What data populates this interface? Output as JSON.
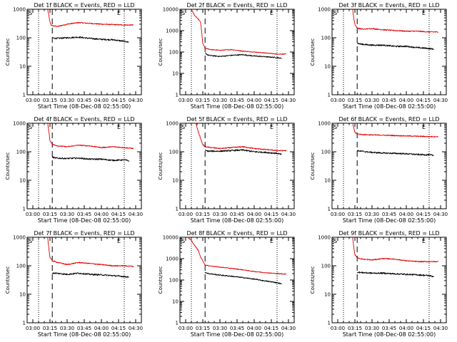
{
  "figure": {
    "background": "#ffffff",
    "event_color": "#000000",
    "lld_color": "#e00000",
    "marker_color": "#000000"
  },
  "chart_data": [
    {
      "type": "line",
      "title": "Det 1f BLACK = Events, RED = LLD",
      "xlabel": "Start Time (08-Dec-08 02:55:00)",
      "ylabel": "Counts/sec",
      "corner_labels": [
        "S",
        "E"
      ],
      "yscale": "log",
      "ylim": [
        1,
        1000
      ],
      "ytick_labels": [
        "1",
        "10",
        "100",
        "1000"
      ],
      "xlim": [
        "02:55",
        "04:35"
      ],
      "xtick_labels": [
        "03:00",
        "03:15",
        "03:30",
        "03:45",
        "04:00",
        "04:15",
        "04:30"
      ],
      "dotted_markers": [
        "03:05",
        "04:20"
      ],
      "dashed_marker": "03:17",
      "grid": false,
      "series": [
        {
          "kind": "lld",
          "x": [
            "03:13",
            "03:14",
            "03:15",
            "03:16",
            "03:18",
            "03:22",
            "03:30",
            "03:40",
            "03:50",
            "04:00",
            "04:10",
            "04:20",
            "04:28"
          ],
          "y": [
            1000,
            600,
            350,
            280,
            260,
            250,
            300,
            340,
            320,
            300,
            290,
            280,
            280
          ]
        },
        {
          "kind": "events",
          "x": [
            "03:17",
            "03:20",
            "03:30",
            "03:40",
            "03:50",
            "04:00",
            "04:10",
            "04:20",
            "04:24"
          ],
          "y": [
            100,
            95,
            100,
            105,
            95,
            88,
            85,
            75,
            70
          ]
        }
      ]
    },
    {
      "type": "line",
      "title": "Det 2f BLACK = Events, RED = LLD",
      "xlabel": "Start Time (08-Dec-08 02:55:00)",
      "ylabel": "Counts/sec",
      "corner_labels": [
        "S",
        "E"
      ],
      "yscale": "log",
      "ylim": [
        1,
        10000
      ],
      "ytick_labels": [
        "1",
        "10",
        "100",
        "1000",
        "10000"
      ],
      "xlim": [
        "02:55",
        "04:35"
      ],
      "xtick_labels": [
        "03:00",
        "03:15",
        "03:30",
        "03:45",
        "04:00",
        "04:15",
        "04:30"
      ],
      "dotted_markers": [
        "03:05",
        "04:20"
      ],
      "dashed_marker": "03:17",
      "grid": false,
      "series": [
        {
          "kind": "lld",
          "x": [
            "03:05",
            "03:08",
            "03:11",
            "03:13",
            "03:14",
            "03:15",
            "03:17",
            "03:22",
            "03:30",
            "03:40",
            "03:50",
            "04:00",
            "04:10",
            "04:20",
            "04:28"
          ],
          "y": [
            10000,
            5000,
            3500,
            2500,
            900,
            250,
            150,
            130,
            120,
            130,
            110,
            100,
            90,
            80,
            80
          ]
        },
        {
          "kind": "events",
          "x": [
            "03:17",
            "03:20",
            "03:30",
            "03:40",
            "03:50",
            "04:00",
            "04:10",
            "04:20",
            "04:24"
          ],
          "y": [
            90,
            70,
            62,
            70,
            75,
            65,
            60,
            55,
            50
          ]
        }
      ]
    },
    {
      "type": "line",
      "title": "Det 3f BLACK = Events, RED = LLD",
      "xlabel": "Start Time (08-Dec-08 02:55:00)",
      "ylabel": "Counts/sec",
      "corner_labels": [
        "S",
        "E"
      ],
      "yscale": "log",
      "ylim": [
        1,
        1000
      ],
      "ytick_labels": [
        "1",
        "10",
        "100",
        "1000"
      ],
      "xlim": [
        "02:55",
        "04:35"
      ],
      "xtick_labels": [
        "03:00",
        "03:15",
        "03:30",
        "03:45",
        "04:00",
        "04:15",
        "04:30"
      ],
      "dotted_markers": [
        "03:05",
        "04:20"
      ],
      "dashed_marker": "03:17",
      "grid": false,
      "series": [
        {
          "kind": "lld",
          "x": [
            "03:13",
            "03:14",
            "03:15",
            "03:17",
            "03:22",
            "03:30",
            "03:40",
            "03:50",
            "04:00",
            "04:10",
            "04:20",
            "04:28"
          ],
          "y": [
            1000,
            500,
            300,
            220,
            200,
            210,
            190,
            180,
            170,
            170,
            160,
            160
          ]
        },
        {
          "kind": "events",
          "x": [
            "03:17",
            "03:20",
            "03:30",
            "03:40",
            "03:50",
            "04:00",
            "04:10",
            "04:20",
            "04:24"
          ],
          "y": [
            65,
            60,
            55,
            55,
            50,
            50,
            45,
            42,
            40
          ]
        }
      ]
    },
    {
      "type": "line",
      "title": "Det 4f BLACK = Events, RED = LLD",
      "xlabel": "Start Time (08-Dec-08 02:55:00)",
      "ylabel": "Counts/sec",
      "corner_labels": [
        "S",
        "E"
      ],
      "yscale": "log",
      "ylim": [
        1,
        1000
      ],
      "ytick_labels": [
        "1",
        "10",
        "100",
        "1000"
      ],
      "xlim": [
        "02:55",
        "04:35"
      ],
      "xtick_labels": [
        "03:00",
        "03:15",
        "03:30",
        "03:45",
        "04:00",
        "04:15",
        "04:30"
      ],
      "dotted_markers": [
        "03:05",
        "04:20"
      ],
      "dashed_marker": "03:17",
      "grid": false,
      "series": [
        {
          "kind": "lld",
          "x": [
            "03:13",
            "03:14",
            "03:15",
            "03:17",
            "03:22",
            "03:30",
            "03:40",
            "03:50",
            "04:00",
            "04:10",
            "04:20",
            "04:28"
          ],
          "y": [
            1000,
            500,
            250,
            180,
            160,
            150,
            170,
            160,
            140,
            150,
            140,
            130
          ]
        },
        {
          "kind": "events",
          "x": [
            "03:17",
            "03:20",
            "03:30",
            "03:40",
            "03:50",
            "04:00",
            "04:10",
            "04:20",
            "04:24"
          ],
          "y": [
            65,
            60,
            58,
            60,
            55,
            55,
            50,
            52,
            48
          ]
        }
      ]
    },
    {
      "type": "line",
      "title": "Det 5f BLACK = Events, RED = LLD",
      "xlabel": "Start Time (08-Dec-08 02:55:00)",
      "ylabel": "Counts/sec",
      "corner_labels": [
        "S",
        "E"
      ],
      "yscale": "log",
      "ylim": [
        1,
        1000
      ],
      "ytick_labels": [
        "1",
        "10",
        "100",
        "1000"
      ],
      "xlim": [
        "02:55",
        "04:35"
      ],
      "xtick_labels": [
        "03:00",
        "03:15",
        "03:30",
        "03:45",
        "04:00",
        "04:15",
        "04:30"
      ],
      "dotted_markers": [
        "03:05",
        "04:20"
      ],
      "dashed_marker": "03:17",
      "grid": false,
      "series": [
        {
          "kind": "lld",
          "x": [
            "03:09",
            "03:11",
            "03:13",
            "03:15",
            "03:17",
            "03:22",
            "03:30",
            "03:40",
            "03:50",
            "04:00",
            "04:10",
            "04:20",
            "04:28"
          ],
          "y": [
            1000,
            500,
            300,
            180,
            150,
            140,
            130,
            140,
            150,
            130,
            120,
            110,
            110
          ]
        },
        {
          "kind": "events",
          "x": [
            "03:17",
            "03:20",
            "03:30",
            "03:40",
            "03:50",
            "04:00",
            "04:10",
            "04:20",
            "04:24"
          ],
          "y": [
            110,
            105,
            105,
            110,
            115,
            100,
            95,
            88,
            80
          ]
        }
      ]
    },
    {
      "type": "line",
      "title": "Det 6f BLACK = Events, RED = LLD",
      "xlabel": "Start Time (08-Dec-08 02:55:00)",
      "ylabel": "Counts/sec",
      "corner_labels": [
        "S",
        "E"
      ],
      "yscale": "log",
      "ylim": [
        1,
        1000
      ],
      "ytick_labels": [
        "1",
        "10",
        "100",
        "1000"
      ],
      "xlim": [
        "02:55",
        "04:35"
      ],
      "xtick_labels": [
        "03:00",
        "03:15",
        "03:30",
        "03:45",
        "04:00",
        "04:15",
        "04:30"
      ],
      "dotted_markers": [
        "03:05",
        "04:20"
      ],
      "dashed_marker": "03:17",
      "grid": false,
      "series": [
        {
          "kind": "lld",
          "x": [
            "03:13",
            "03:14",
            "03:15",
            "03:17",
            "03:22",
            "03:30",
            "03:40",
            "03:50",
            "04:00",
            "04:10",
            "04:20",
            "04:28"
          ],
          "y": [
            1000,
            700,
            480,
            420,
            400,
            390,
            380,
            370,
            360,
            350,
            340,
            340
          ]
        },
        {
          "kind": "events",
          "x": [
            "03:17",
            "03:20",
            "03:30",
            "03:40",
            "03:50",
            "04:00",
            "04:10",
            "04:20",
            "04:24"
          ],
          "y": [
            110,
            105,
            95,
            90,
            88,
            85,
            80,
            78,
            75
          ]
        }
      ]
    },
    {
      "type": "line",
      "title": "Det 7f BLACK = Events, RED = LLD",
      "xlabel": "Start Time (08-Dec-08 02:55:00)",
      "ylabel": "Counts/sec",
      "corner_labels": [
        "S",
        "E"
      ],
      "yscale": "log",
      "ylim": [
        1,
        1000
      ],
      "ytick_labels": [
        "1",
        "10",
        "100",
        "1000"
      ],
      "xlim": [
        "02:55",
        "04:35"
      ],
      "xtick_labels": [
        "03:00",
        "03:15",
        "03:30",
        "03:45",
        "04:00",
        "04:15",
        "04:30"
      ],
      "dotted_markers": [
        "03:05",
        "04:20"
      ],
      "dashed_marker": "03:17",
      "grid": false,
      "series": [
        {
          "kind": "lld",
          "x": [
            "03:13",
            "03:14",
            "03:15",
            "03:17",
            "03:22",
            "03:30",
            "03:40",
            "03:50",
            "04:00",
            "04:10",
            "04:20",
            "04:28"
          ],
          "y": [
            1000,
            400,
            200,
            150,
            130,
            110,
            130,
            120,
            110,
            100,
            100,
            95
          ]
        },
        {
          "kind": "events",
          "x": [
            "03:17",
            "03:20",
            "03:30",
            "03:40",
            "03:50",
            "04:00",
            "04:10",
            "04:20",
            "04:24"
          ],
          "y": [
            55,
            55,
            50,
            55,
            50,
            48,
            45,
            42,
            40
          ]
        }
      ]
    },
    {
      "type": "line",
      "title": "Det 8f BLACK = Events, RED = LLD",
      "xlabel": "Start Time (08-Dec-08 02:55:00)",
      "ylabel": "Counts/sec",
      "corner_labels": [
        "S",
        "E"
      ],
      "yscale": "log",
      "ylim": [
        1,
        10000
      ],
      "ytick_labels": [
        "1",
        "10",
        "100",
        "1000",
        "10000"
      ],
      "xlim": [
        "02:55",
        "04:35"
      ],
      "xtick_labels": [
        "03:00",
        "03:15",
        "03:30",
        "03:45",
        "04:00",
        "04:15",
        "04:30"
      ],
      "dotted_markers": [
        "03:05",
        "04:20"
      ],
      "dashed_marker": "03:17",
      "grid": false,
      "series": [
        {
          "kind": "lld",
          "x": [
            "03:02",
            "03:05",
            "03:08",
            "03:11",
            "03:13",
            "03:15",
            "03:17",
            "03:22",
            "03:30",
            "03:40",
            "03:50",
            "04:00",
            "04:10",
            "04:20",
            "04:28"
          ],
          "y": [
            10000,
            7000,
            4000,
            2500,
            1200,
            800,
            500,
            450,
            400,
            350,
            300,
            250,
            220,
            200,
            190
          ]
        },
        {
          "kind": "events",
          "x": [
            "03:17",
            "03:20",
            "03:30",
            "03:40",
            "03:50",
            "04:00",
            "04:10",
            "04:20",
            "04:24"
          ],
          "y": [
            230,
            200,
            170,
            150,
            130,
            110,
            90,
            75,
            65
          ]
        }
      ]
    },
    {
      "type": "line",
      "title": "Det 9f BLACK = Events, RED = LLD",
      "xlabel": "Start Time (08-Dec-08 02:55:00)",
      "ylabel": "Counts/sec",
      "corner_labels": [
        "S",
        "E"
      ],
      "yscale": "log",
      "ylim": [
        1,
        1000
      ],
      "ytick_labels": [
        "1",
        "10",
        "100",
        "1000"
      ],
      "xlim": [
        "02:55",
        "04:35"
      ],
      "xtick_labels": [
        "03:00",
        "03:15",
        "03:30",
        "03:45",
        "04:00",
        "04:15",
        "04:30"
      ],
      "dotted_markers": [
        "03:05",
        "04:20"
      ],
      "dashed_marker": "03:17",
      "grid": false,
      "series": [
        {
          "kind": "lld",
          "x": [
            "03:13",
            "03:14",
            "03:15",
            "03:17",
            "03:22",
            "03:30",
            "03:40",
            "03:50",
            "04:00",
            "04:10",
            "04:20",
            "04:28"
          ],
          "y": [
            1000,
            450,
            250,
            190,
            170,
            160,
            180,
            170,
            150,
            140,
            140,
            140
          ]
        },
        {
          "kind": "events",
          "x": [
            "03:17",
            "03:20",
            "03:30",
            "03:40",
            "03:50",
            "04:00",
            "04:10",
            "04:20",
            "04:24"
          ],
          "y": [
            60,
            58,
            55,
            55,
            52,
            50,
            48,
            45,
            42
          ]
        }
      ]
    }
  ]
}
